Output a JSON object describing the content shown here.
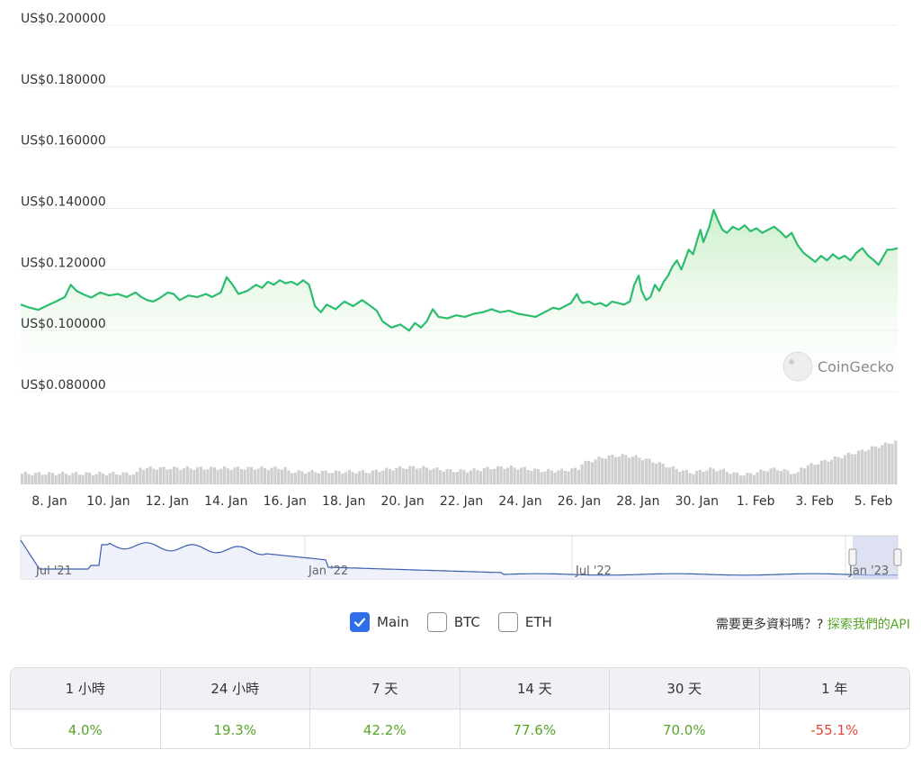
{
  "chart_data": {
    "type": "line",
    "y_axis": {
      "ticks": [
        "US$0.200000",
        "US$0.180000",
        "US$0.160000",
        "US$0.140000",
        "US$0.120000",
        "US$0.100000",
        "US$0.080000"
      ],
      "tick_values": [
        0.2,
        0.18,
        0.16,
        0.14,
        0.12,
        0.1,
        0.08
      ],
      "range": [
        0.08,
        0.2
      ]
    },
    "x_axis": {
      "ticks": [
        "8. Jan",
        "10. Jan",
        "12. Jan",
        "14. Jan",
        "16. Jan",
        "18. Jan",
        "20. Jan",
        "22. Jan",
        "24. Jan",
        "26. Jan",
        "28. Jan",
        "30. Jan",
        "1. Feb",
        "3. Feb",
        "5. Feb"
      ],
      "tick_days": [
        0,
        2,
        4,
        6,
        8,
        10,
        12,
        14,
        16,
        18,
        20,
        22,
        24,
        26,
        28
      ],
      "range_days": [
        0,
        29.8
      ]
    },
    "grid": true,
    "colors": {
      "line": "#2dbd6e",
      "area_top": "#c9eec6",
      "volume": "#cfcfcf",
      "navigator_line": "#3b5fb0",
      "navigator_mask": "#dde2f4"
    },
    "series": [
      {
        "price": [
          [
            0.0,
            0.1085
          ],
          [
            0.3,
            0.1075
          ],
          [
            0.6,
            0.1068
          ],
          [
            0.9,
            0.1082
          ],
          [
            1.2,
            0.1095
          ],
          [
            1.5,
            0.111
          ],
          [
            1.7,
            0.115
          ],
          [
            1.9,
            0.113
          ],
          [
            2.1,
            0.112
          ],
          [
            2.4,
            0.1108
          ],
          [
            2.7,
            0.1125
          ],
          [
            3.0,
            0.1115
          ],
          [
            3.3,
            0.112
          ],
          [
            3.6,
            0.111
          ],
          [
            3.9,
            0.1125
          ],
          [
            4.1,
            0.111
          ],
          [
            4.3,
            0.11
          ],
          [
            4.5,
            0.1095
          ],
          [
            4.7,
            0.1105
          ],
          [
            5.0,
            0.1125
          ],
          [
            5.2,
            0.112
          ],
          [
            5.4,
            0.11
          ],
          [
            5.7,
            0.1115
          ],
          [
            6.0,
            0.111
          ],
          [
            6.3,
            0.112
          ],
          [
            6.5,
            0.111
          ],
          [
            6.8,
            0.1125
          ],
          [
            7.0,
            0.1175
          ],
          [
            7.2,
            0.115
          ],
          [
            7.4,
            0.112
          ],
          [
            7.7,
            0.113
          ],
          [
            8.0,
            0.115
          ],
          [
            8.2,
            0.114
          ],
          [
            8.4,
            0.116
          ],
          [
            8.6,
            0.115
          ],
          [
            8.8,
            0.1165
          ],
          [
            9.0,
            0.1155
          ],
          [
            9.2,
            0.116
          ],
          [
            9.4,
            0.115
          ],
          [
            9.6,
            0.1165
          ],
          [
            9.8,
            0.115
          ],
          [
            10.0,
            0.108
          ],
          [
            10.2,
            0.106
          ],
          [
            10.4,
            0.1085
          ],
          [
            10.7,
            0.107
          ],
          [
            11.0,
            0.1095
          ],
          [
            11.3,
            0.108
          ],
          [
            11.6,
            0.11
          ],
          [
            11.9,
            0.108
          ],
          [
            12.1,
            0.1065
          ],
          [
            12.3,
            0.103
          ],
          [
            12.6,
            0.101
          ],
          [
            12.9,
            0.102
          ],
          [
            13.2,
            0.1
          ],
          [
            13.4,
            0.1025
          ],
          [
            13.6,
            0.101
          ],
          [
            13.8,
            0.103
          ],
          [
            14.0,
            0.107
          ],
          [
            14.2,
            0.1045
          ],
          [
            14.5,
            0.104
          ],
          [
            14.8,
            0.105
          ],
          [
            15.1,
            0.1045
          ],
          [
            15.4,
            0.1055
          ],
          [
            15.7,
            0.106
          ],
          [
            16.0,
            0.107
          ],
          [
            16.3,
            0.106
          ],
          [
            16.6,
            0.1065
          ],
          [
            16.9,
            0.1055
          ],
          [
            17.2,
            0.105
          ],
          [
            17.5,
            0.1045
          ],
          [
            17.8,
            0.106
          ],
          [
            18.1,
            0.1075
          ],
          [
            18.3,
            0.107
          ],
          [
            18.5,
            0.108
          ],
          [
            18.7,
            0.109
          ],
          [
            18.9,
            0.112
          ],
          [
            19.0,
            0.11
          ],
          [
            19.1,
            0.109
          ],
          [
            19.3,
            0.1095
          ],
          [
            19.5,
            0.1085
          ],
          [
            19.7,
            0.109
          ],
          [
            19.9,
            0.108
          ],
          [
            20.1,
            0.1095
          ],
          [
            20.3,
            0.109
          ],
          [
            20.5,
            0.1085
          ],
          [
            20.7,
            0.1095
          ],
          [
            20.85,
            0.115
          ],
          [
            21.0,
            0.118
          ],
          [
            21.1,
            0.113
          ],
          [
            21.25,
            0.11
          ],
          [
            21.4,
            0.111
          ],
          [
            21.55,
            0.115
          ],
          [
            21.7,
            0.113
          ],
          [
            21.85,
            0.116
          ],
          [
            22.0,
            0.118
          ],
          [
            22.15,
            0.121
          ],
          [
            22.3,
            0.123
          ],
          [
            22.45,
            0.12
          ],
          [
            22.55,
            0.1225
          ],
          [
            22.7,
            0.1265
          ],
          [
            22.85,
            0.125
          ],
          [
            23.0,
            0.13
          ],
          [
            23.1,
            0.133
          ],
          [
            23.2,
            0.129
          ],
          [
            23.4,
            0.134
          ],
          [
            23.55,
            0.1395
          ],
          [
            23.7,
            0.136
          ],
          [
            23.85,
            0.133
          ],
          [
            24.0,
            0.132
          ],
          [
            24.2,
            0.134
          ],
          [
            24.4,
            0.133
          ],
          [
            24.6,
            0.1345
          ],
          [
            24.8,
            0.1325
          ],
          [
            25.0,
            0.1335
          ],
          [
            25.2,
            0.132
          ],
          [
            25.4,
            0.133
          ],
          [
            25.6,
            0.134
          ],
          [
            25.8,
            0.1325
          ],
          [
            26.0,
            0.1305
          ],
          [
            26.2,
            0.132
          ],
          [
            26.4,
            0.128
          ],
          [
            26.6,
            0.1255
          ],
          [
            26.8,
            0.124
          ],
          [
            27.0,
            0.1225
          ],
          [
            27.2,
            0.1245
          ],
          [
            27.4,
            0.123
          ],
          [
            27.6,
            0.125
          ],
          [
            27.8,
            0.1235
          ],
          [
            28.0,
            0.1245
          ],
          [
            28.2,
            0.123
          ],
          [
            28.4,
            0.1255
          ],
          [
            28.6,
            0.127
          ],
          [
            28.8,
            0.1245
          ],
          [
            29.0,
            0.123
          ],
          [
            29.15,
            0.1215
          ],
          [
            29.3,
            0.124
          ],
          [
            29.45,
            0.1265
          ],
          [
            29.6,
            0.1265
          ],
          [
            29.8,
            0.127
          ]
        ]
      }
    ]
  },
  "watermark": {
    "text": "CoinGecko",
    "icon": "gecko-logo-icon"
  },
  "navigator": {
    "labels": [
      "Jul '21",
      "Jan '22",
      "Jul '22",
      "Jan '23"
    ]
  },
  "toggles": [
    {
      "label": "Main",
      "checked": true
    },
    {
      "label": "BTC",
      "checked": false
    },
    {
      "label": "ETH",
      "checked": false
    }
  ],
  "api_prompt": {
    "text": "需要更多資料嗎？?",
    "link": "探索我們的API"
  },
  "change_table": {
    "headers": [
      "1 小時",
      "24 小時",
      "7 天",
      "14 天",
      "30 天",
      "1 年"
    ],
    "values": [
      {
        "text": "4.0%",
        "direction": "up"
      },
      {
        "text": "19.3%",
        "direction": "up"
      },
      {
        "text": "42.2%",
        "direction": "up"
      },
      {
        "text": "77.6%",
        "direction": "up"
      },
      {
        "text": "70.0%",
        "direction": "up"
      },
      {
        "text": "-55.1%",
        "direction": "down"
      }
    ]
  }
}
